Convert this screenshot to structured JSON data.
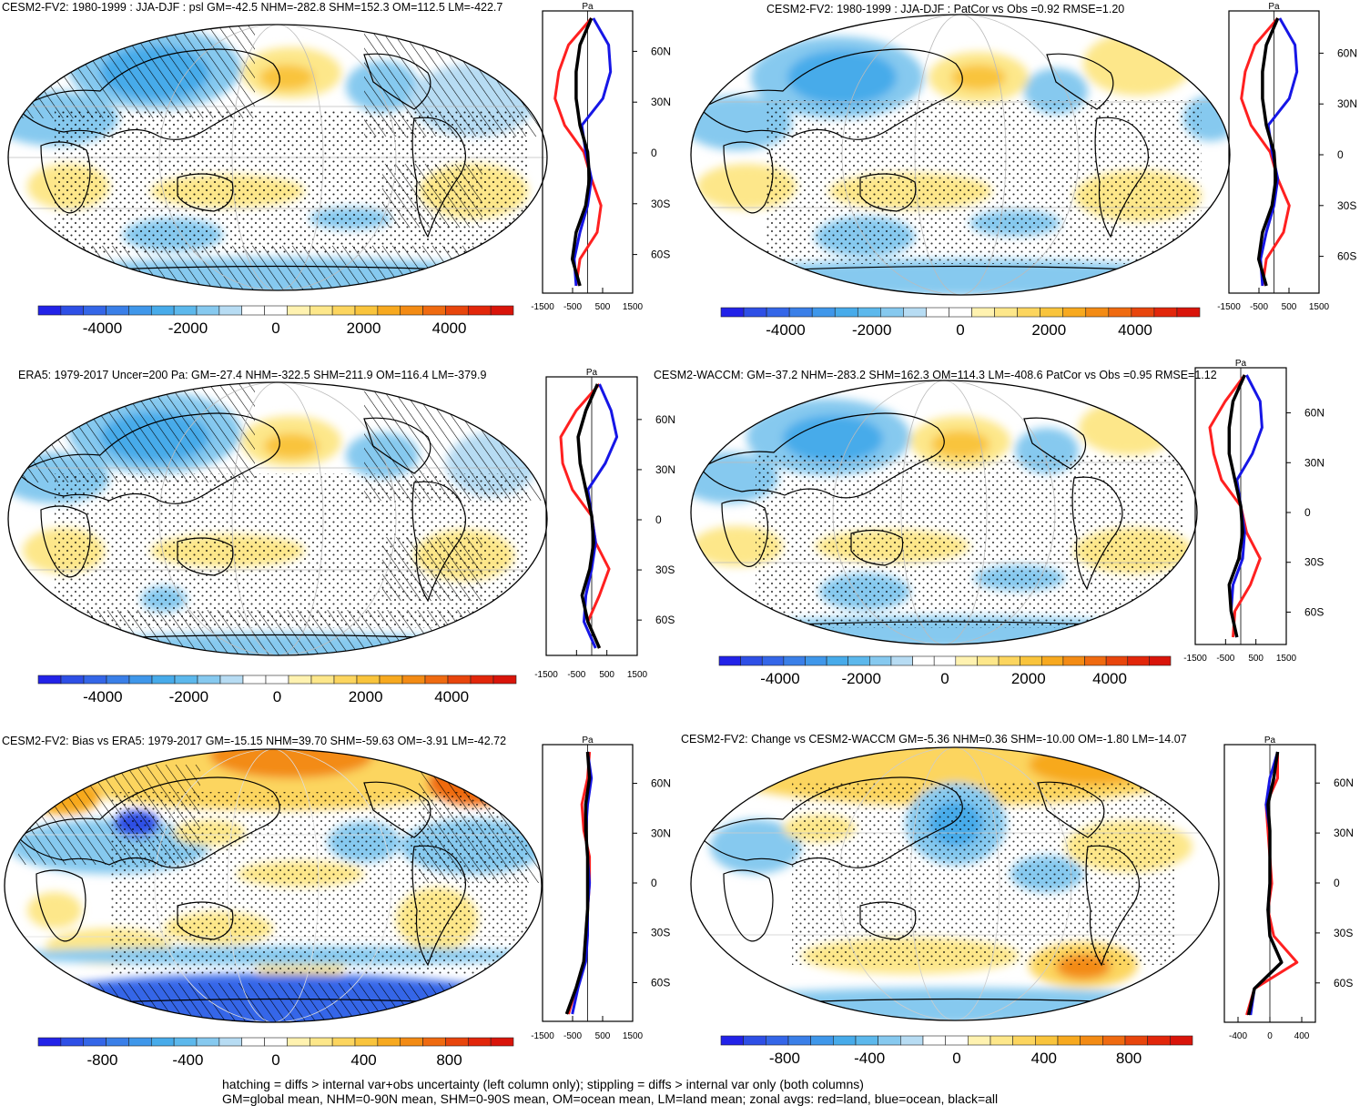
{
  "units_label": "Pa",
  "colors": {
    "blue_levels": [
      "#2222e8",
      "#2e4fe6",
      "#3466e8",
      "#3a7fe8",
      "#3f97ea",
      "#47abea",
      "#5cb8ec",
      "#86c9ef",
      "#b7dcf3"
    ],
    "white": "#ffffff",
    "warm_levels": [
      "#fff2b0",
      "#fde78a",
      "#fcd55e",
      "#f9c43c",
      "#f7a91f",
      "#f38b14",
      "#ef6a10",
      "#e8450c",
      "#e2260a",
      "#d9140a"
    ],
    "land_line": "#ff2020",
    "ocean_line": "#1616e6",
    "all_line": "#000000"
  },
  "panels": [
    {
      "id": "p1",
      "title": "CESM2-FV2: 1980-1999 : JJA-DJF : psl GM=-42.5 NHM=-282.8 SHM=152.3 OM=112.5 LM=-422.7",
      "colorbar_labels": [
        "-4000",
        "-2000",
        "0",
        "2000",
        "4000"
      ],
      "zonal_ticks": [
        "-1500",
        "-500",
        "500",
        "1500"
      ],
      "lat_labels": [
        "60N",
        "30N",
        "0",
        "30S",
        "60S"
      ]
    },
    {
      "id": "p2",
      "title": "CESM2-FV2: 1980-1999 : JJA-DJF : PatCor vs Obs =0.92 RMSE=1.20",
      "colorbar_labels": [
        "-4000",
        "-2000",
        "0",
        "2000",
        "4000"
      ],
      "zonal_ticks": [
        "-1500",
        "-500",
        "500",
        "1500"
      ],
      "lat_labels": [
        "60N",
        "30N",
        "0",
        "30S",
        "60S"
      ]
    },
    {
      "id": "p3",
      "title": "ERA5: 1979-2017 Uncer=200 Pa: GM=-27.4 NHM=-322.5 SHM=211.9 OM=116.4 LM=-379.9",
      "colorbar_labels": [
        "-4000",
        "-2000",
        "0",
        "2000",
        "4000"
      ],
      "zonal_ticks": [
        "-1500",
        "-500",
        "500",
        "1500"
      ],
      "lat_labels": [
        "60N",
        "30N",
        "0",
        "30S",
        "60S"
      ]
    },
    {
      "id": "p4",
      "title": "CESM2-WACCM: GM=-37.2 NHM=-283.2 SHM=162.3 OM=114.3 LM=-408.6 PatCor vs Obs =0.95 RMSE=1.12",
      "colorbar_labels": [
        "-4000",
        "-2000",
        "0",
        "2000",
        "4000"
      ],
      "zonal_ticks": [
        "-1500",
        "-500",
        "500",
        "1500"
      ],
      "lat_labels": [
        "60N",
        "30N",
        "0",
        "30S",
        "60S"
      ]
    },
    {
      "id": "p5",
      "title": "CESM2-FV2: Bias vs ERA5: 1979-2017 GM=-15.15 NHM=39.70 SHM=-59.63 OM=-3.91 LM=-42.72",
      "colorbar_labels": [
        "-800",
        "-400",
        "0",
        "400",
        "800"
      ],
      "zonal_ticks": [
        "-1500",
        "-500",
        "500",
        "1500"
      ],
      "lat_labels": [
        "60N",
        "30N",
        "0",
        "30S",
        "60S"
      ]
    },
    {
      "id": "p6",
      "title": "CESM2-FV2: Change vs CESM2-WACCM GM=-5.36 NHM=0.36 SHM=-10.00 OM=-1.80 LM=-14.07",
      "colorbar_labels": [
        "-800",
        "-400",
        "0",
        "400",
        "800"
      ],
      "zonal_ticks": [
        "-400",
        "0",
        "400"
      ],
      "lat_labels": [
        "60N",
        "30N",
        "0",
        "30S",
        "60S"
      ]
    }
  ],
  "footer": {
    "line1": "hatching = diffs > internal var+obs uncertainty (left column only); stippling = diffs > internal var only (both columns)",
    "line2": "GM=global mean, NHM=0-90N mean, SHM=0-90S mean, OM=ocean mean, LM=land mean; zonal avgs: red=land, blue=ocean, black=all"
  }
}
